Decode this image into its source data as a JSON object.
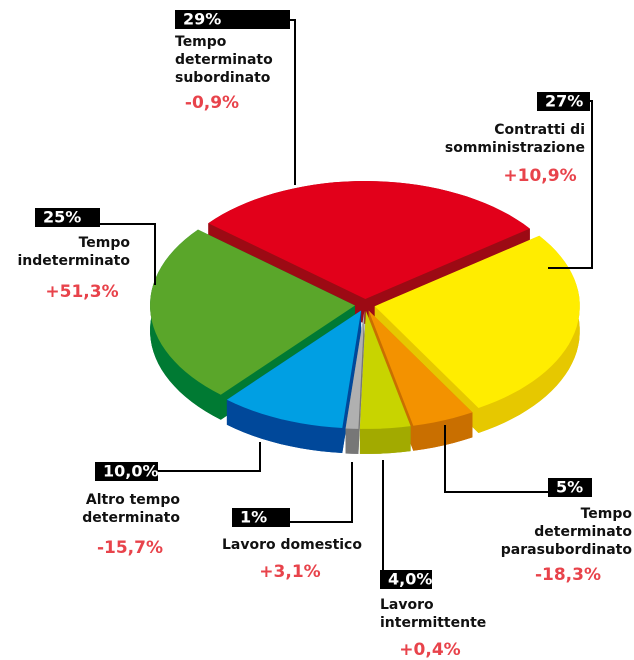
{
  "chart_data": {
    "type": "pie",
    "categories": [
      "Tempo determinato subordinato",
      "Contratti di somministrazione",
      "Tempo determinato parasubordinato",
      "Lavoro intermittente",
      "Lavoro domestico",
      "Altro tempo determinato",
      "Tempo indeterminato"
    ],
    "values": [
      29,
      27,
      5,
      4,
      1,
      10,
      25
    ],
    "value_labels": [
      "29%",
      "27%",
      "5%",
      "4,0%",
      "1%",
      "10,0%",
      "25%"
    ],
    "changes": [
      -0.9,
      10.9,
      -18.3,
      0.4,
      3.1,
      -15.7,
      51.3
    ],
    "change_labels": [
      "-0,9%",
      "+10,9%",
      "-18,3%",
      "+0,4%",
      "+3,1%",
      "-15,7%",
      "+51,3%"
    ],
    "colors": [
      "#e2001a",
      "#ffed00",
      "#f39200",
      "#c8d400",
      "#b0b0b0",
      "#009fe3",
      "#5aa62a"
    ],
    "side_colors": [
      "#9c0a14",
      "#e6c800",
      "#c96f00",
      "#a2aa00",
      "#777777",
      "#00489a",
      "#007a33"
    ]
  }
}
